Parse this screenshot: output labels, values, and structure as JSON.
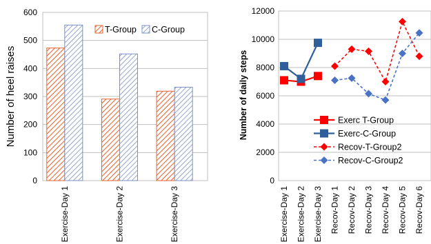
{
  "chart_data": [
    {
      "type": "bar",
      "title": "",
      "xlabel": "",
      "ylabel": "Number of heel raises",
      "ylim": [
        0,
        600
      ],
      "yticks": [
        0,
        100,
        200,
        300,
        400,
        500,
        600
      ],
      "grid": true,
      "legend": "top-right",
      "categories": [
        "Exercise-Day 1",
        "Exercise-Day 2",
        "Exercise-Day 3"
      ],
      "series": [
        {
          "name": "T-Group",
          "values": [
            473,
            291,
            319
          ],
          "color": "#e8602c",
          "pattern": "diagonal-hatch"
        },
        {
          "name": "C-Group",
          "values": [
            555,
            452,
            333
          ],
          "color": "#7a8fc4",
          "pattern": "diagonal-hatch"
        }
      ]
    },
    {
      "type": "line",
      "title": "",
      "xlabel": "",
      "ylabel": "Number of daily steps",
      "ylim": [
        0,
        12000
      ],
      "yticks": [
        0,
        2000,
        4000,
        6000,
        8000,
        10000,
        12000
      ],
      "grid": true,
      "legend": "bottom-center",
      "categories": [
        "Exercise-Day 1",
        "Exercise-Day 2",
        "Exercise-Day 3",
        "Recov-Day 1",
        "Recov-Day 2",
        "Recov-Day 3",
        "Recov-Day 4",
        "Recov-Day 5",
        "Recov-Day 6"
      ],
      "series": [
        {
          "name": "Exerc T-Group",
          "color": "#ff0000",
          "marker": "square",
          "dash": false,
          "values": [
            7100,
            7000,
            7400,
            null,
            null,
            null,
            null,
            null,
            null
          ]
        },
        {
          "name": "Exerc-C-Group",
          "color": "#2e5f9a",
          "marker": "square",
          "dash": false,
          "values": [
            8100,
            7200,
            9750,
            null,
            null,
            null,
            null,
            null,
            null
          ]
        },
        {
          "name": "Recov-T-Group2",
          "color": "#ff0000",
          "marker": "diamond",
          "dash": true,
          "values": [
            null,
            null,
            null,
            8100,
            9300,
            9150,
            7000,
            11250,
            8800
          ]
        },
        {
          "name": "Recov-C-Group2",
          "color": "#4a72c4",
          "marker": "diamond",
          "dash": true,
          "values": [
            null,
            null,
            null,
            7100,
            7250,
            6150,
            5700,
            9000,
            10450
          ]
        }
      ]
    }
  ]
}
